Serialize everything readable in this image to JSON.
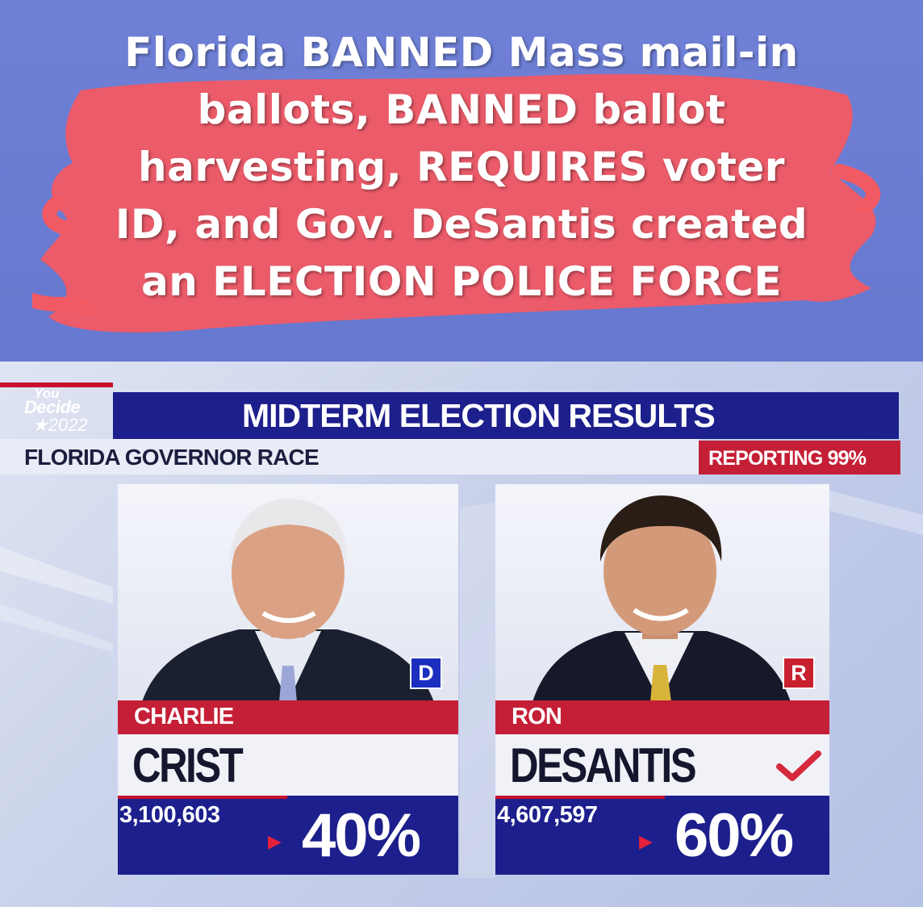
{
  "banner": {
    "lines": [
      "Florida BANNED Mass mail-in",
      "ballots, BANNED ballot",
      "harvesting, REQUIRES voter",
      "ID, and Gov. DeSantis created",
      "an ELECTION POLICE FORCE"
    ]
  },
  "broadcast": {
    "logo": {
      "line1": "You",
      "line2": "Decide",
      "line3": "★2022"
    },
    "title": "MIDTERM ELECTION RESULTS",
    "race": "FLORIDA GOVERNOR RACE",
    "reporting": "REPORTING 99%"
  },
  "candidates": [
    {
      "first": "CHARLIE",
      "last": "CRIST",
      "party": "D",
      "votes": "3,100,603",
      "percent": "40%",
      "winner": false
    },
    {
      "first": "RON",
      "last": "DESANTIS",
      "party": "R",
      "votes": "4,607,597",
      "percent": "60%",
      "winner": true
    }
  ],
  "colors": {
    "banner_bg": "#6d7fd6",
    "smear_red": "#f25a63",
    "header_navy": "#1d1f8c",
    "accent_red": "#c41f36",
    "democrat_blue": "#1c2ec0",
    "republican_red": "#c8202f"
  },
  "icons": {
    "winner": "checkmark-icon",
    "pct_marker": "triangle-right-icon"
  }
}
